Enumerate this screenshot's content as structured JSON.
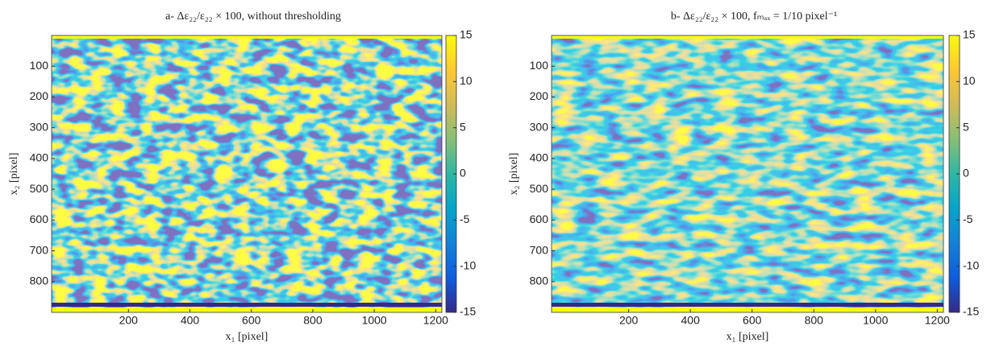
{
  "chart_data": [
    {
      "type": "heatmap",
      "title": "a- Δε₂₂/ε₂₂ × 100, without thresholding",
      "xlabel": "x₁ [pixel]",
      "ylabel": "x₂ [pixel]",
      "xlim": [
        -50,
        1220
      ],
      "xticks": [
        200,
        400,
        600,
        800,
        1000,
        1200
      ],
      "ylim": [
        0,
        900
      ],
      "y_direction": "reverse",
      "yticks": [
        100,
        200,
        300,
        400,
        500,
        600,
        700,
        800
      ],
      "clim": [
        -15,
        15
      ],
      "cticks": [
        -15,
        -10,
        -5,
        0,
        5,
        10,
        15
      ],
      "colormap": [
        "#352a87",
        "#0f5cdd",
        "#1481d6",
        "#06a4ca",
        "#2eb7a4",
        "#87bf77",
        "#d1bb59",
        "#fec832",
        "#f9fb0e"
      ]
    },
    {
      "type": "heatmap",
      "title": "b- Δε₂₂/ε₂₂ × 100, fₘₐₓ = 1/10 pixel⁻¹",
      "xlabel": "x₁ [pixel]",
      "ylabel": "x₂ [pixel]",
      "xlim": [
        -50,
        1220
      ],
      "xticks": [
        200,
        400,
        600,
        800,
        1000,
        1200
      ],
      "ylim": [
        0,
        900
      ],
      "y_direction": "reverse",
      "yticks": [
        100,
        200,
        300,
        400,
        500,
        600,
        700,
        800
      ],
      "clim": [
        -15,
        15
      ],
      "cticks": [
        -15,
        -10,
        -5,
        0,
        5,
        10,
        15
      ],
      "colormap": [
        "#352a87",
        "#0f5cdd",
        "#1481d6",
        "#06a4ca",
        "#2eb7a4",
        "#87bf77",
        "#d1bb59",
        "#fec832",
        "#f9fb0e"
      ]
    }
  ]
}
